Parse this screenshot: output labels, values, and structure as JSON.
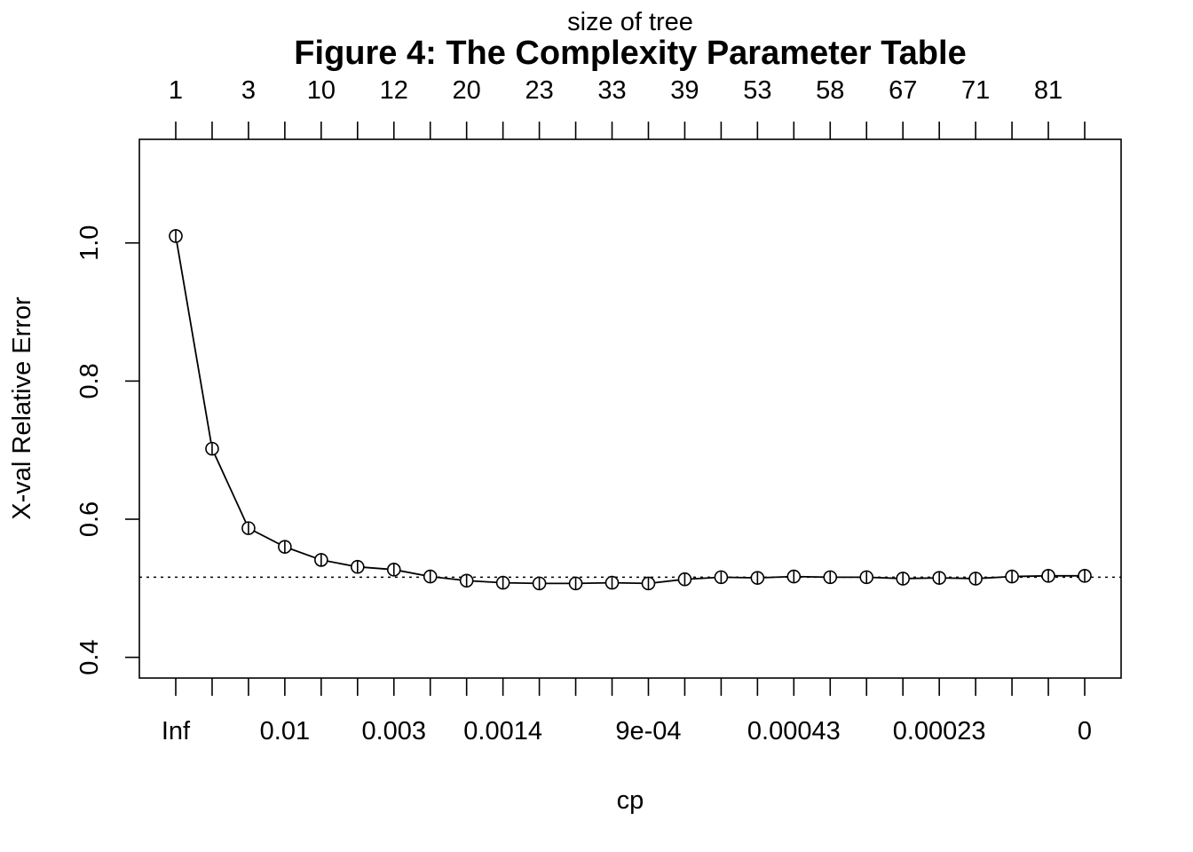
{
  "chart_data": {
    "type": "line",
    "title": "Figure 4: The Complexity Parameter Table",
    "xlabel": "cp",
    "ylabel": "X-val Relative Error",
    "top_axis_label": "size of tree",
    "bottom_tick_labels": [
      {
        "index": 0,
        "label": "Inf"
      },
      {
        "index": 3,
        "label": "0.01"
      },
      {
        "index": 6,
        "label": "0.003"
      },
      {
        "index": 9,
        "label": "0.0014"
      },
      {
        "index": 13,
        "label": "9e-04"
      },
      {
        "index": 17,
        "label": "0.00043"
      },
      {
        "index": 21,
        "label": "0.00023"
      },
      {
        "index": 25,
        "label": "0"
      }
    ],
    "top_tick_labels": [
      {
        "index": 0,
        "label": "1"
      },
      {
        "index": 2,
        "label": "3"
      },
      {
        "index": 4,
        "label": "10"
      },
      {
        "index": 6,
        "label": "12"
      },
      {
        "index": 8,
        "label": "20"
      },
      {
        "index": 10,
        "label": "23"
      },
      {
        "index": 12,
        "label": "33"
      },
      {
        "index": 14,
        "label": "39"
      },
      {
        "index": 16,
        "label": "53"
      },
      {
        "index": 18,
        "label": "58"
      },
      {
        "index": 20,
        "label": "67"
      },
      {
        "index": 22,
        "label": "71"
      },
      {
        "index": 24,
        "label": "81"
      }
    ],
    "y_ticks": [
      0.4,
      0.6,
      0.8,
      1.0
    ],
    "y_tick_labels": [
      "0.4",
      "0.6",
      "0.8",
      "1.0"
    ],
    "ylim": [
      0.37,
      1.15
    ],
    "values": [
      1.01,
      0.702,
      0.587,
      0.56,
      0.541,
      0.531,
      0.527,
      0.517,
      0.511,
      0.508,
      0.507,
      0.507,
      0.508,
      0.507,
      0.513,
      0.516,
      0.515,
      0.517,
      0.516,
      0.516,
      0.514,
      0.515,
      0.514,
      0.517,
      0.518,
      0.518
    ],
    "reference_line": 0.516,
    "grid": false,
    "legend": "none"
  }
}
